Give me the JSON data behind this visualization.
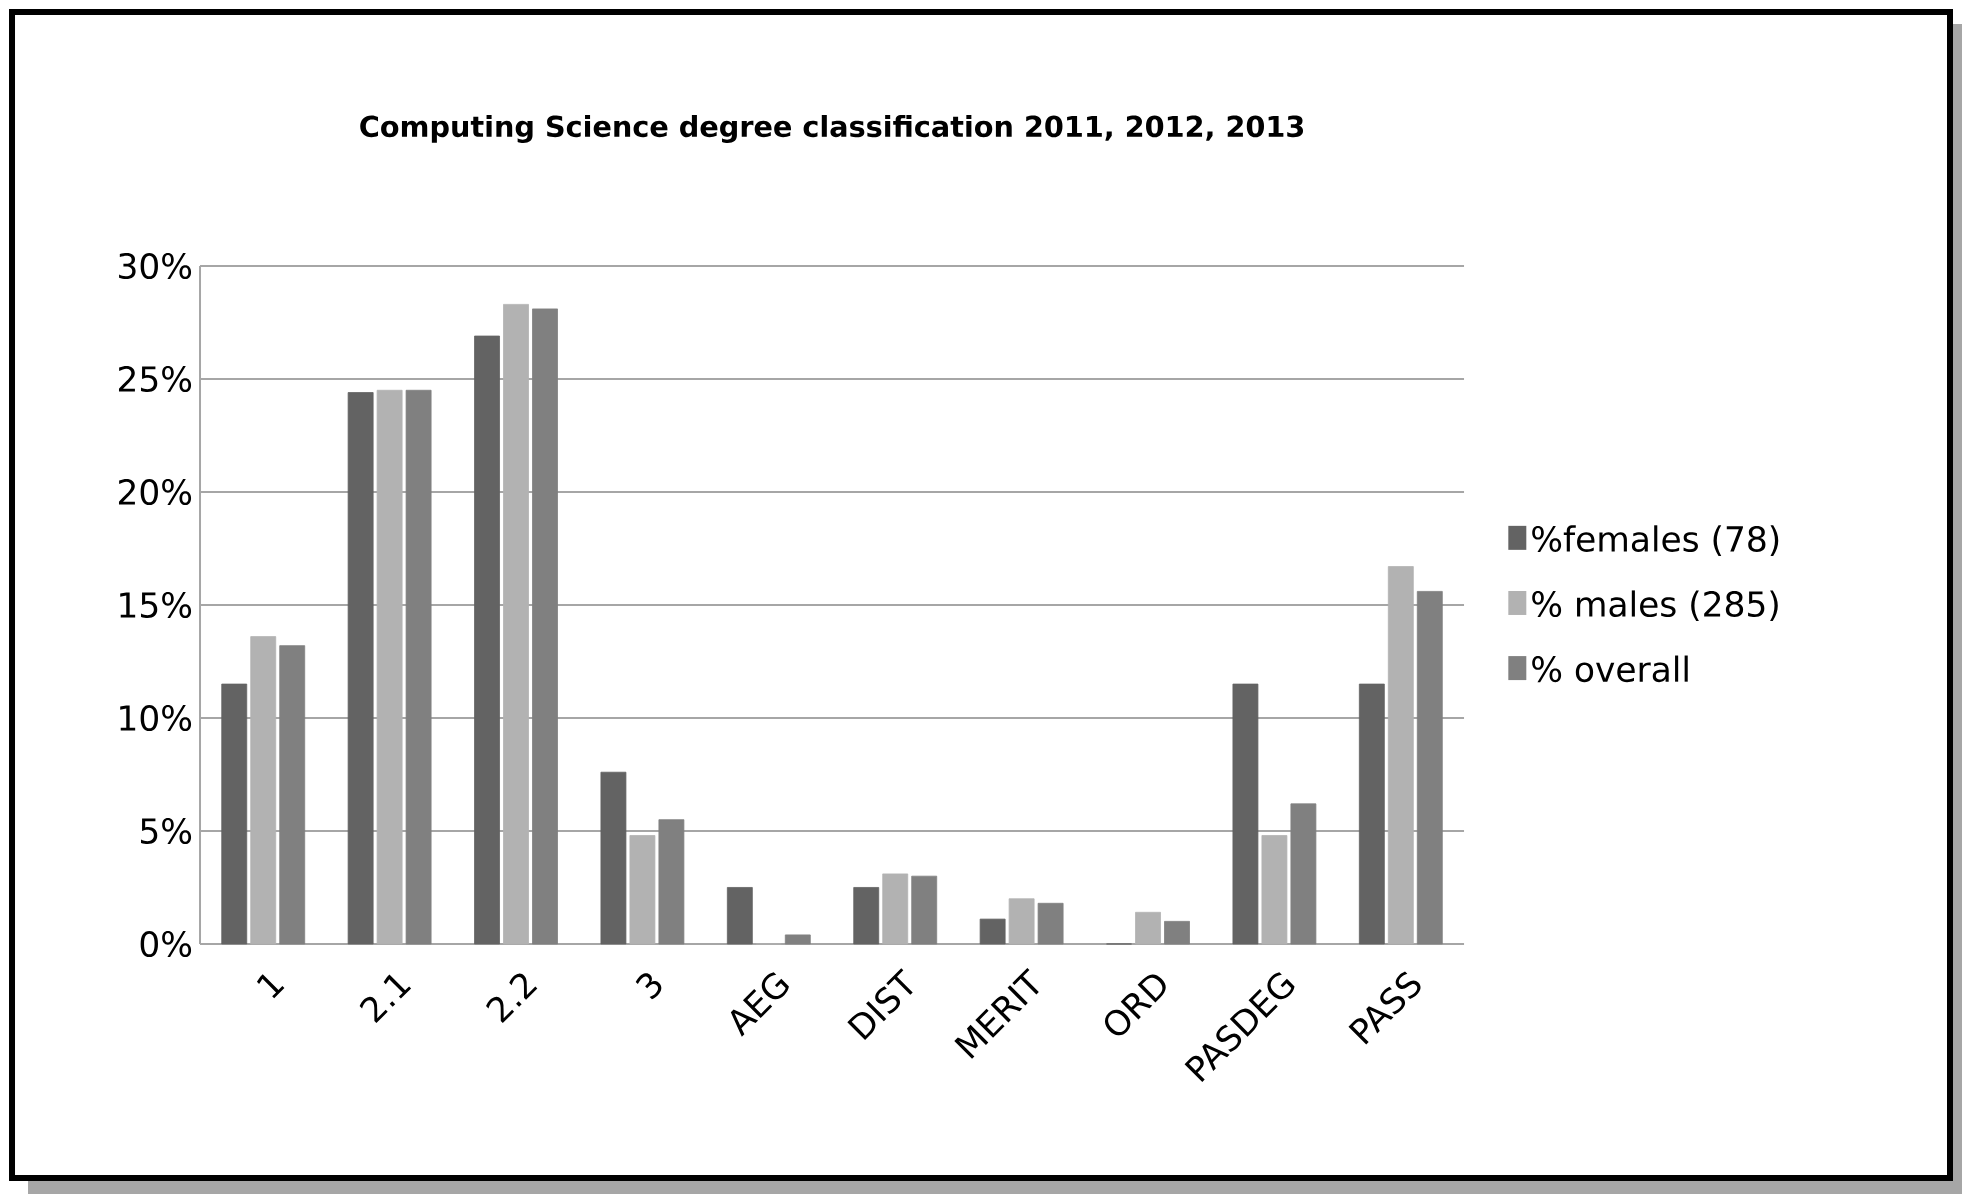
{
  "chart_data": {
    "type": "bar",
    "title": "Computing  Science degree classification 2011, 2012, 2013",
    "categories": [
      "1",
      "2.1",
      "2.2",
      "3",
      "AEG",
      "DIST",
      "MERIT",
      "ORD",
      "PASDEG",
      "PASS"
    ],
    "series": [
      {
        "name": "%females (78)",
        "color": "#636363",
        "values": [
          11.5,
          24.4,
          26.9,
          7.6,
          2.5,
          2.5,
          1.1,
          0,
          11.5,
          11.5
        ]
      },
      {
        "name": "% males (285)",
        "color": "#b2b2b2",
        "values": [
          13.6,
          24.5,
          28.3,
          4.8,
          0,
          3.1,
          2.0,
          1.4,
          4.8,
          16.7
        ]
      },
      {
        "name": "% overall",
        "color": "#808080",
        "values": [
          13.2,
          24.5,
          28.1,
          5.5,
          0.4,
          3.0,
          1.8,
          1.0,
          6.2,
          15.6
        ]
      }
    ],
    "ylim": [
      0,
      30
    ],
    "yticks": [
      {
        "value": 0,
        "label": "0%"
      },
      {
        "value": 5,
        "label": "5%"
      },
      {
        "value": 10,
        "label": "10%"
      },
      {
        "value": 15,
        "label": "15%"
      },
      {
        "value": 20,
        "label": "20%"
      },
      {
        "value": 25,
        "label": "25%"
      },
      {
        "value": 30,
        "label": "30%"
      }
    ],
    "grid": "y",
    "legend": "right"
  }
}
